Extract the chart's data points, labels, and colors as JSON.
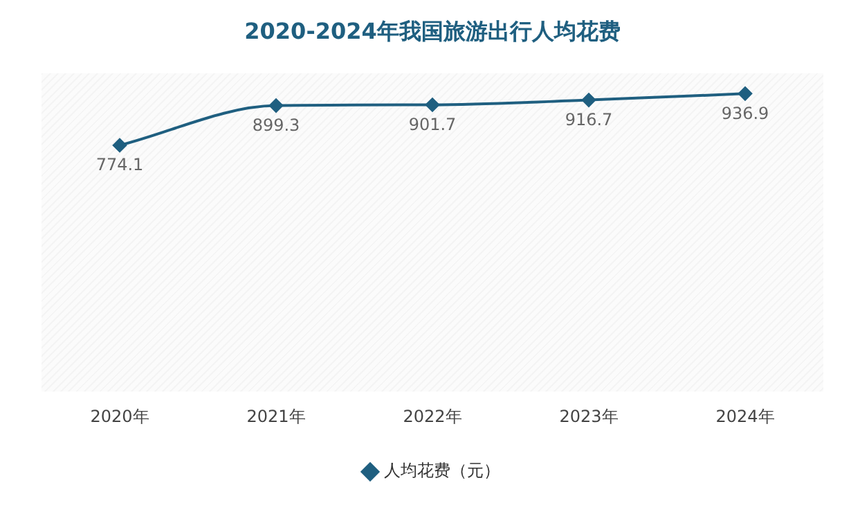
{
  "chart_data": {
    "type": "line",
    "title": "2020-2024年我国旅游出行人均花费",
    "categories": [
      "2020年",
      "2021年",
      "2022年",
      "2023年",
      "2024年"
    ],
    "series": [
      {
        "name": "人均花费（元）",
        "color": "#1f5f80",
        "values": [
          774.1,
          899.3,
          901.7,
          916.7,
          936.9
        ]
      }
    ],
    "ylim": [
      0,
      1000
    ],
    "tick_labels": "x",
    "data_labels": true,
    "legend": "bottom",
    "marker": "diamond",
    "grid": false
  }
}
